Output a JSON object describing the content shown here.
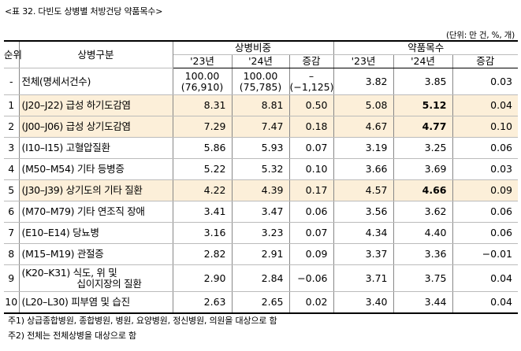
{
  "caption": "<표 32. 다빈도 상병별 처방건당 약품목수>",
  "unit_note": "(단위: 만 건, %, 개)",
  "headers": {
    "rank": "순위",
    "category": "상병구분",
    "share_group": "상병비중",
    "drugs_group": "약품목수",
    "y23": "'23년",
    "y24": "'24년",
    "change": "증감"
  },
  "total_row": {
    "rank": "-",
    "name": "전체(명세서건수)",
    "s23": "100.00",
    "s23_count": "(76,910)",
    "s24": "100.00",
    "s24_count": "(75,785)",
    "s_change": "–",
    "s_change_count": "(−1,125)",
    "d23": "3.82",
    "d24": "3.85",
    "d_change": "0.03"
  },
  "rows": [
    {
      "rank": "1",
      "name": "(J20–J22) 급성 하기도감염",
      "s23": "8.31",
      "s24": "8.81",
      "sc": "0.50",
      "d23": "5.08",
      "d24": "5.12",
      "dc": "0.04"
    },
    {
      "rank": "2",
      "name": "(J00–J06) 급성 상기도감염",
      "s23": "7.29",
      "s24": "7.47",
      "sc": "0.18",
      "d23": "4.67",
      "d24": "4.77",
      "dc": "0.10"
    },
    {
      "rank": "3",
      "name": "(I10–I15) 고혈압질환",
      "s23": "5.86",
      "s24": "5.93",
      "sc": "0.07",
      "d23": "3.19",
      "d24": "3.25",
      "dc": "0.06"
    },
    {
      "rank": "4",
      "name": "(M50–M54) 기타 등병증",
      "s23": "5.22",
      "s24": "5.32",
      "sc": "0.10",
      "d23": "3.66",
      "d24": "3.69",
      "dc": "0.03"
    },
    {
      "rank": "5",
      "name": "(J30–J39) 상기도의 기타 질환",
      "s23": "4.22",
      "s24": "4.39",
      "sc": "0.17",
      "d23": "4.57",
      "d24": "4.66",
      "dc": "0.09"
    },
    {
      "rank": "6",
      "name": "(M70–M79) 기타 연조직 장애",
      "s23": "3.41",
      "s24": "3.47",
      "sc": "0.06",
      "d23": "3.56",
      "d24": "3.62",
      "dc": "0.06"
    },
    {
      "rank": "7",
      "name": "(E10–E14) 당뇨병",
      "s23": "3.16",
      "s24": "3.23",
      "sc": "0.07",
      "d23": "4.34",
      "d24": "4.40",
      "dc": "0.06"
    },
    {
      "rank": "8",
      "name": "(M15–M19) 관절증",
      "s23": "2.82",
      "s24": "2.91",
      "sc": "0.09",
      "d23": "3.37",
      "d24": "3.36",
      "dc": "−0.01"
    },
    {
      "rank": "9",
      "name_line1": "(K20–K31) 식도, 위 및",
      "name_line2": "십이지장의 질환",
      "s23": "2.90",
      "s24": "2.84",
      "sc": "−0.06",
      "d23": "3.71",
      "d24": "3.75",
      "dc": "0.04"
    },
    {
      "rank": "10",
      "name": "(L20–L30) 피부염 및 습진",
      "s23": "2.63",
      "s24": "2.65",
      "sc": "0.02",
      "d23": "3.40",
      "d24": "3.44",
      "dc": "0.04"
    }
  ],
  "notes": [
    "주1) 상급종합병원, 종합병원, 병원, 요양병원, 정신병원, 의원을 대상으로 함",
    "주2) 전체는 전체상병을 대상으로 함"
  ],
  "highlight_color": "#fcefd9"
}
